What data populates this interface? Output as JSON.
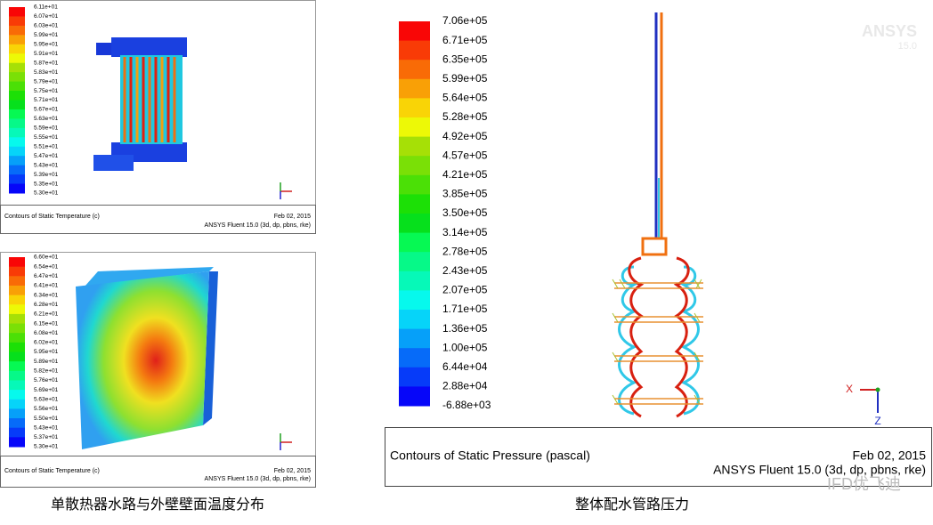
{
  "panels": [
    {
      "legend": [
        "6.11e+01",
        "6.07e+01",
        "6.03e+01",
        "5.99e+01",
        "5.95e+01",
        "5.91e+01",
        "5.87e+01",
        "5.83e+01",
        "5.79e+01",
        "5.75e+01",
        "5.71e+01",
        "5.67e+01",
        "5.63e+01",
        "5.59e+01",
        "5.55e+01",
        "5.51e+01",
        "5.47e+01",
        "5.43e+01",
        "5.39e+01",
        "5.35e+01",
        "5.30e+01"
      ],
      "footer": {
        "title": "Contours of Static Temperature (c)",
        "date": "Feb 02, 2015",
        "software": "ANSYS Fluent 15.0 (3d, dp, pbns, rke)"
      }
    },
    {
      "legend": [
        "6.60e+01",
        "6.54e+01",
        "6.47e+01",
        "6.41e+01",
        "6.34e+01",
        "6.28e+01",
        "6.21e+01",
        "6.15e+01",
        "6.08e+01",
        "6.02e+01",
        "5.95e+01",
        "5.89e+01",
        "5.82e+01",
        "5.76e+01",
        "5.69e+01",
        "5.63e+01",
        "5.56e+01",
        "5.50e+01",
        "5.43e+01",
        "5.37e+01",
        "5.30e+01"
      ],
      "footer": {
        "title": "Contours of Static Temperature (c)",
        "date": "Feb 02, 2015",
        "software": "ANSYS Fluent 15.0 (3d, dp, pbns, rke)"
      }
    },
    {
      "legend": [
        "7.06e+05",
        "6.71e+05",
        "6.35e+05",
        "5.99e+05",
        "5.64e+05",
        "5.28e+05",
        "4.92e+05",
        "4.57e+05",
        "4.21e+05",
        "3.85e+05",
        "3.50e+05",
        "3.14e+05",
        "2.78e+05",
        "2.43e+05",
        "2.07e+05",
        "1.71e+05",
        "1.36e+05",
        "1.00e+05",
        "6.44e+04",
        "2.88e+04",
        "-6.88e+03"
      ],
      "footer": {
        "title": "Contours of Static Pressure (pascal)",
        "date": "Feb 02, 2015",
        "software": "ANSYS Fluent 15.0 (3d, dp, pbns, rke)"
      },
      "axes": [
        "X",
        "Z"
      ],
      "logo": [
        "ANSYS",
        "15.0"
      ]
    }
  ],
  "captions": [
    "单散热器水路与外壁壁面温度分布",
    "整体配水管路压力"
  ],
  "watermark": "IFD优飞迪"
}
